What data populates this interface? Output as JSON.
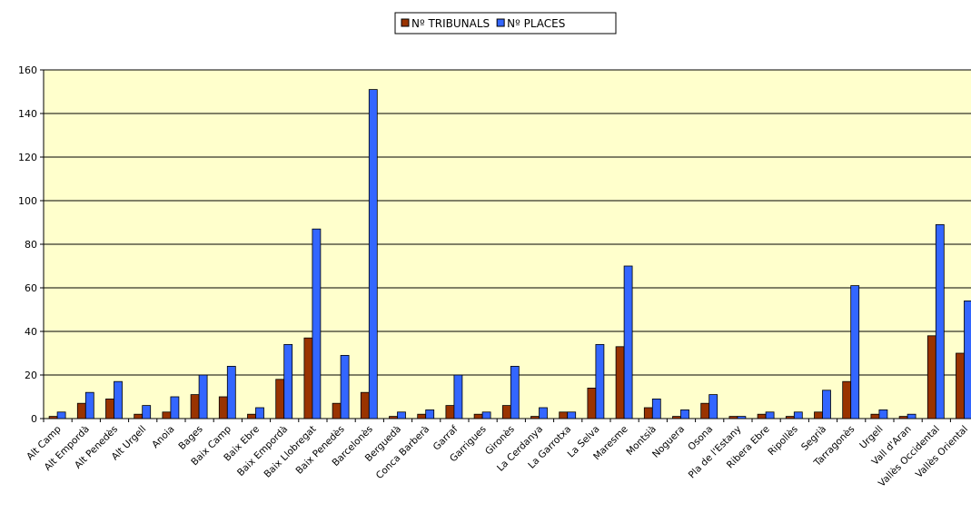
{
  "chart_data": {
    "type": "bar",
    "categories": [
      "Alt Camp",
      "Alt Empordà",
      "Alt Penedès",
      "Alt Urgell",
      "Anoia",
      "Bages",
      "Baix Camp",
      "Baix Ebre",
      "Baix Empordà",
      "Baix Llobregat",
      "Baix Penedès",
      "Barcelonès",
      "Berguedà",
      "Conca Barberà",
      "Garraf",
      "Garrigues",
      "Gironès",
      "La Cerdanya",
      "La Garrotxa",
      "La Selva",
      "Maresme",
      "Montsià",
      "Noguera",
      "Osona",
      "Pla de l'Estany",
      "Ribera Ebre",
      "Ripollès",
      "Segrià",
      "Tarragonès",
      "Urgell",
      "Vall d'Aran",
      "Vallès Occidental",
      "Vallès Oriental"
    ],
    "series": [
      {
        "name": "Nº TRIBUNALS",
        "color": "#993300",
        "values": [
          1,
          7,
          9,
          2,
          3,
          11,
          10,
          2,
          18,
          37,
          7,
          12,
          1,
          2,
          6,
          2,
          6,
          1,
          3,
          14,
          33,
          5,
          1,
          7,
          1,
          2,
          1,
          3,
          17,
          2,
          1,
          38,
          30
        ]
      },
      {
        "name": "Nº PLACES",
        "color": "#3366ff",
        "values": [
          3,
          12,
          17,
          6,
          10,
          20,
          24,
          5,
          34,
          87,
          29,
          151,
          3,
          4,
          20,
          3,
          24,
          5,
          3,
          34,
          70,
          9,
          4,
          11,
          1,
          3,
          3,
          13,
          61,
          4,
          2,
          89,
          54
        ]
      }
    ],
    "ylim": [
      0,
      160
    ],
    "yticks": [
      0,
      20,
      40,
      60,
      80,
      100,
      120,
      140,
      160
    ],
    "grid": true,
    "legend": "top",
    "plot_background": "#ffffcc"
  }
}
